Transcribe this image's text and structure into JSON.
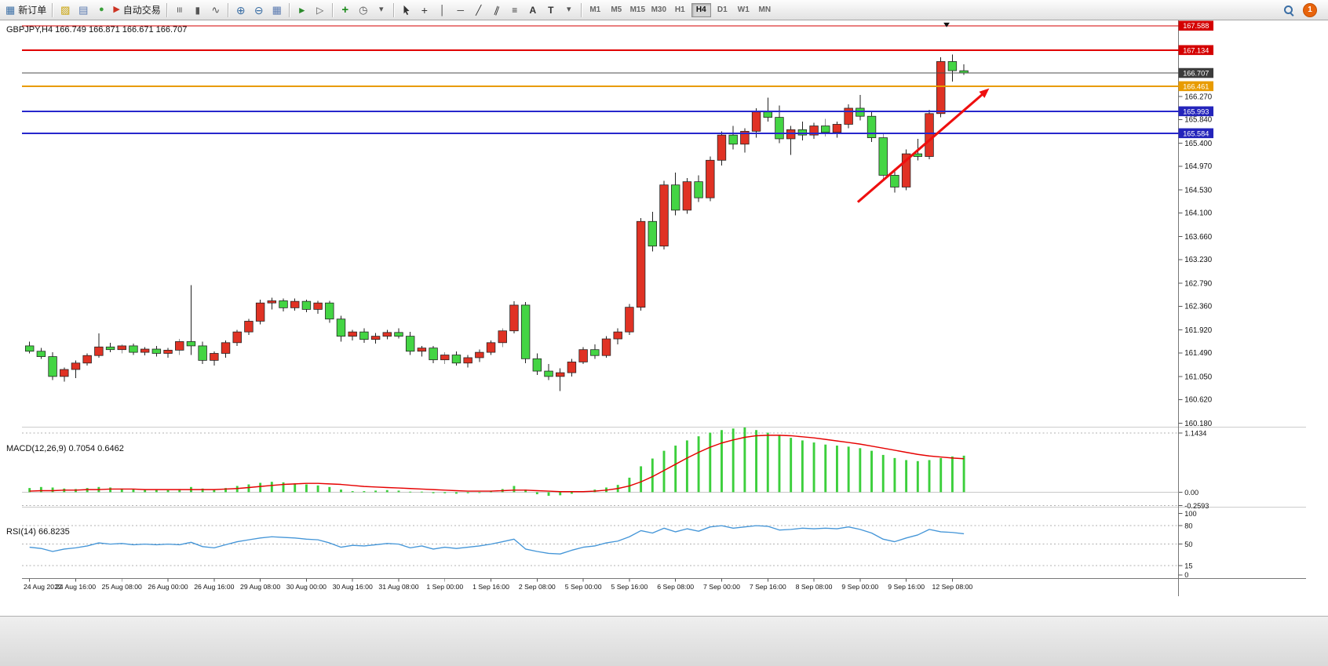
{
  "toolbar": {
    "new_order_label": "新订单",
    "auto_trading_label": "自动交易",
    "timeframes": [
      "M1",
      "M5",
      "M15",
      "M30",
      "H1",
      "H4",
      "D1",
      "W1",
      "MN"
    ],
    "active_timeframe": "H4",
    "notification_count": "1",
    "glyphs": {
      "new_order": "▦",
      "metaeditor": "▨",
      "charts": "▤",
      "signals": "●",
      "auto_trading": "▶",
      "bar_chart": "≡",
      "candle_chart": "▮",
      "line_chart": "∿",
      "zoom_in": "⊕",
      "zoom_out": "⊖",
      "tile_windows": "▦",
      "auto_scroll": "►",
      "chart_shift": "▷",
      "indicators": "+",
      "periods": "◷",
      "templates": "▾",
      "crosshair": "+",
      "vline": "│",
      "hline": "─",
      "trendline": "╱",
      "channel": "∥",
      "fibonacci": "≡",
      "text": "A",
      "label": "T",
      "shapes": "▾"
    }
  },
  "chart_data": [
    {
      "type": "candlestick",
      "title": "GBPJPY,H4",
      "ohlc_label": "GBPJPY,H4  166.749 166.871 166.671 166.707",
      "up_color": "#e03224",
      "down_color": "#44d544",
      "outline_color": "#222222",
      "ylim": [
        160.109,
        167.687
      ],
      "y_ticks": [
        "166.270",
        "165.840",
        "165.400",
        "164.970",
        "164.530",
        "164.100",
        "163.660",
        "163.230",
        "162.790",
        "162.360",
        "161.920",
        "161.490",
        "161.050",
        "160.620",
        "160.180"
      ],
      "x_labels": [
        "24 Aug 2022",
        "24 Aug 16:00",
        "25 Aug 08:00",
        "26 Aug 00:00",
        "26 Aug 16:00",
        "29 Aug 08:00",
        "30 Aug 00:00",
        "30 Aug 16:00",
        "31 Aug 08:00",
        "1 Sep 00:00",
        "1 Sep 16:00",
        "2 Sep 08:00",
        "5 Sep 00:00",
        "5 Sep 16:00",
        "6 Sep 08:00",
        "7 Sep 00:00",
        "7 Sep 16:00",
        "8 Sep 08:00",
        "9 Sep 00:00",
        "9 Sep 16:00",
        "12 Sep 08:00"
      ],
      "candles_per_label": 4,
      "hlines": [
        {
          "price": 167.588,
          "label": "167.588",
          "color": "#d40000",
          "badge": "#d40000",
          "width": 1
        },
        {
          "price": 167.134,
          "label": "167.134",
          "color": "#e00000",
          "badge": "#d40000",
          "width": 2
        },
        {
          "price": 166.707,
          "label": "166.707",
          "color": "#4d4d4d",
          "badge": "#3c3c3c",
          "width": 1
        },
        {
          "price": 166.461,
          "label": "166.461",
          "color": "#e89b00",
          "badge": "#e89b00",
          "width": 2
        },
        {
          "price": 165.993,
          "label": "165.993",
          "color": "#2727cc",
          "badge": "#2424bb",
          "width": 2
        },
        {
          "price": 165.584,
          "label": "165.584",
          "color": "#2727cc",
          "badge": "#2424bb",
          "width": 2
        }
      ],
      "trend_arrow": {
        "from": {
          "candle": 71.8,
          "price": 164.3
        },
        "to": {
          "candle": 83.2,
          "price": 166.42
        },
        "color": "#ee0f0f"
      },
      "shift_marker_candle": 79.5,
      "candles": [
        [
          161.62,
          161.7,
          161.48,
          161.52
        ],
        [
          161.52,
          161.58,
          161.38,
          161.42
        ],
        [
          161.42,
          161.5,
          160.98,
          161.05
        ],
        [
          161.05,
          161.22,
          160.95,
          161.18
        ],
        [
          161.18,
          161.35,
          161.02,
          161.3
        ],
        [
          161.3,
          161.48,
          161.25,
          161.44
        ],
        [
          161.44,
          161.85,
          161.4,
          161.6
        ],
        [
          161.6,
          161.68,
          161.5,
          161.55
        ],
        [
          161.55,
          161.65,
          161.48,
          161.62
        ],
        [
          161.62,
          161.66,
          161.45,
          161.5
        ],
        [
          161.5,
          161.6,
          161.44,
          161.56
        ],
        [
          161.56,
          161.62,
          161.42,
          161.48
        ],
        [
          161.48,
          161.58,
          161.4,
          161.54
        ],
        [
          161.54,
          161.75,
          161.45,
          161.7
        ],
        [
          161.7,
          162.75,
          161.45,
          161.62
        ],
        [
          161.62,
          161.7,
          161.28,
          161.35
        ],
        [
          161.35,
          161.52,
          161.25,
          161.48
        ],
        [
          161.48,
          161.72,
          161.4,
          161.68
        ],
        [
          161.68,
          161.92,
          161.62,
          161.88
        ],
        [
          161.88,
          162.12,
          161.82,
          162.08
        ],
        [
          162.08,
          162.48,
          162.02,
          162.42
        ],
        [
          162.42,
          162.52,
          162.3,
          162.46
        ],
        [
          162.46,
          162.5,
          162.26,
          162.33
        ],
        [
          162.33,
          162.5,
          162.28,
          162.45
        ],
        [
          162.45,
          162.48,
          162.25,
          162.3
        ],
        [
          162.3,
          162.46,
          162.22,
          162.42
        ],
        [
          162.42,
          162.46,
          162.05,
          162.12
        ],
        [
          162.12,
          162.18,
          161.7,
          161.8
        ],
        [
          161.8,
          161.92,
          161.72,
          161.88
        ],
        [
          161.88,
          161.95,
          161.68,
          161.74
        ],
        [
          161.74,
          161.86,
          161.66,
          161.8
        ],
        [
          161.8,
          161.92,
          161.74,
          161.87
        ],
        [
          161.87,
          161.95,
          161.76,
          161.8
        ],
        [
          161.8,
          161.88,
          161.45,
          161.52
        ],
        [
          161.52,
          161.62,
          161.42,
          161.58
        ],
        [
          161.58,
          161.62,
          161.3,
          161.36
        ],
        [
          161.36,
          161.5,
          161.28,
          161.45
        ],
        [
          161.45,
          161.52,
          161.25,
          161.3
        ],
        [
          161.3,
          161.45,
          161.22,
          161.4
        ],
        [
          161.4,
          161.55,
          161.32,
          161.5
        ],
        [
          161.5,
          161.72,
          161.45,
          161.68
        ],
        [
          161.68,
          161.95,
          161.6,
          161.9
        ],
        [
          161.9,
          162.45,
          161.85,
          162.38
        ],
        [
          162.38,
          162.44,
          161.3,
          161.38
        ],
        [
          161.38,
          161.48,
          161.08,
          161.15
        ],
        [
          161.15,
          161.28,
          160.98,
          161.05
        ],
        [
          161.05,
          161.2,
          160.78,
          161.12
        ],
        [
          161.12,
          161.38,
          161.05,
          161.32
        ],
        [
          161.32,
          161.6,
          161.28,
          161.55
        ],
        [
          161.55,
          161.65,
          161.38,
          161.44
        ],
        [
          161.44,
          161.8,
          161.4,
          161.75
        ],
        [
          161.75,
          161.95,
          161.65,
          161.88
        ],
        [
          161.88,
          162.4,
          161.82,
          162.34
        ],
        [
          162.34,
          164.0,
          162.28,
          163.94
        ],
        [
          163.94,
          164.12,
          163.38,
          163.48
        ],
        [
          163.48,
          164.7,
          163.42,
          164.62
        ],
        [
          164.62,
          164.85,
          164.05,
          164.15
        ],
        [
          164.15,
          164.75,
          164.08,
          164.68
        ],
        [
          164.68,
          164.8,
          164.3,
          164.38
        ],
        [
          164.38,
          165.15,
          164.32,
          165.08
        ],
        [
          165.08,
          165.62,
          164.98,
          165.55
        ],
        [
          165.55,
          165.72,
          165.28,
          165.38
        ],
        [
          165.38,
          165.68,
          165.22,
          165.62
        ],
        [
          165.62,
          166.05,
          165.5,
          165.98
        ],
        [
          165.98,
          166.25,
          165.8,
          165.88
        ],
        [
          165.88,
          166.1,
          165.4,
          165.48
        ],
        [
          165.48,
          165.72,
          165.18,
          165.65
        ],
        [
          165.65,
          165.8,
          165.45,
          165.55
        ],
        [
          165.55,
          165.78,
          165.48,
          165.72
        ],
        [
          165.72,
          165.85,
          165.52,
          165.6
        ],
        [
          165.6,
          165.8,
          165.5,
          165.75
        ],
        [
          165.75,
          166.12,
          165.68,
          166.05
        ],
        [
          166.05,
          166.3,
          165.82,
          165.9
        ],
        [
          165.9,
          165.98,
          165.42,
          165.5
        ],
        [
          165.5,
          165.58,
          164.7,
          164.8
        ],
        [
          164.8,
          164.92,
          164.48,
          164.58
        ],
        [
          164.58,
          165.28,
          164.52,
          165.2
        ],
        [
          165.2,
          165.48,
          165.08,
          165.15
        ],
        [
          165.15,
          166.02,
          165.1,
          165.95
        ],
        [
          165.95,
          167.0,
          165.88,
          166.92
        ],
        [
          166.92,
          167.05,
          166.55,
          166.75
        ],
        [
          166.749,
          166.871,
          166.671,
          166.707
        ]
      ]
    },
    {
      "type": "bar",
      "name": "MACD(12,26,9)",
      "label": "MACD(12,26,9) 0.7054 0.6462",
      "histogram_color": "#3ccf3c",
      "signal_color": "#e60000",
      "ylim": [
        -0.2931,
        1.2607
      ],
      "y_ticks": [
        1.1434,
        0,
        -0.2593
      ],
      "y_tick_labels": [
        "1.1434",
        "0.00",
        "-0.2593"
      ],
      "values": [
        0.08,
        0.1,
        0.09,
        0.07,
        0.06,
        0.08,
        0.1,
        0.09,
        0.07,
        0.06,
        0.05,
        0.05,
        0.04,
        0.06,
        0.1,
        0.07,
        0.05,
        0.08,
        0.12,
        0.15,
        0.18,
        0.2,
        0.19,
        0.17,
        0.15,
        0.13,
        0.1,
        0.05,
        0.02,
        0.02,
        0.03,
        0.04,
        0.03,
        0.01,
        0.01,
        -0.02,
        -0.02,
        -0.03,
        -0.02,
        -0.01,
        0.02,
        0.06,
        0.12,
        0.05,
        -0.04,
        -0.07,
        -0.06,
        -0.03,
        0.02,
        0.05,
        0.09,
        0.14,
        0.28,
        0.5,
        0.65,
        0.8,
        0.9,
        1.0,
        1.08,
        1.15,
        1.2,
        1.23,
        1.25,
        1.2,
        1.15,
        1.1,
        1.05,
        1.0,
        0.96,
        0.92,
        0.9,
        0.88,
        0.85,
        0.8,
        0.72,
        0.66,
        0.62,
        0.6,
        0.62,
        0.66,
        0.69,
        0.7054
      ],
      "signal": [
        0.02,
        0.03,
        0.03,
        0.04,
        0.04,
        0.05,
        0.05,
        0.06,
        0.06,
        0.06,
        0.05,
        0.05,
        0.05,
        0.05,
        0.05,
        0.05,
        0.05,
        0.06,
        0.07,
        0.09,
        0.11,
        0.13,
        0.15,
        0.16,
        0.17,
        0.17,
        0.16,
        0.15,
        0.13,
        0.11,
        0.1,
        0.09,
        0.08,
        0.07,
        0.06,
        0.05,
        0.04,
        0.03,
        0.02,
        0.02,
        0.02,
        0.03,
        0.04,
        0.04,
        0.03,
        0.02,
        0.01,
        0.01,
        0.01,
        0.02,
        0.04,
        0.07,
        0.12,
        0.2,
        0.3,
        0.42,
        0.54,
        0.66,
        0.77,
        0.87,
        0.95,
        1.01,
        1.06,
        1.09,
        1.1,
        1.1,
        1.09,
        1.07,
        1.05,
        1.02,
        0.99,
        0.96,
        0.93,
        0.89,
        0.85,
        0.81,
        0.77,
        0.73,
        0.7,
        0.68,
        0.66,
        0.6462
      ]
    },
    {
      "type": "line",
      "name": "RSI(14)",
      "label": "RSI(14) 66.8235",
      "line_color": "#4596d8",
      "ylim": [
        -6.15,
        109.9
      ],
      "levels": [
        80,
        50,
        15
      ],
      "y_ticks": [
        100,
        80,
        50,
        15,
        0
      ],
      "y_tick_labels": [
        "100",
        "80",
        "50",
        "15",
        "0"
      ],
      "values": [
        45,
        43,
        38,
        42,
        44,
        47,
        52,
        50,
        51,
        49,
        50,
        49,
        50,
        49,
        53,
        46,
        44,
        49,
        54,
        57,
        60,
        62,
        61,
        60,
        58,
        57,
        52,
        45,
        48,
        47,
        49,
        51,
        50,
        44,
        47,
        42,
        45,
        43,
        45,
        47,
        50,
        54,
        58,
        42,
        38,
        35,
        34,
        40,
        45,
        47,
        52,
        55,
        62,
        72,
        68,
        76,
        70,
        75,
        71,
        78,
        80,
        76,
        78,
        80,
        79,
        73,
        74,
        76,
        75,
        76,
        75,
        78,
        74,
        68,
        58,
        54,
        60,
        65,
        74,
        70,
        69,
        66.8235
      ]
    }
  ]
}
